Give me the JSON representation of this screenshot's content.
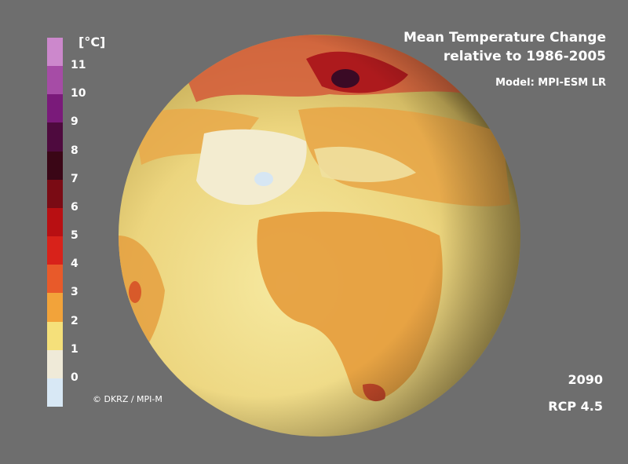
{
  "title": {
    "line1": "Mean Temperature Change",
    "line2": "relative to 1986-2005",
    "model": "Model: MPI-ESM LR"
  },
  "legend": {
    "unit": "[°C]",
    "ticks": [
      "11",
      "10",
      "9",
      "8",
      "7",
      "6",
      "5",
      "4",
      "3",
      "2",
      "1",
      "0"
    ],
    "colors": [
      "#cc88cc",
      "#a64ca6",
      "#7a1a7a",
      "#4e0a3e",
      "#3a0616",
      "#7a0b14",
      "#b80f12",
      "#d8221a",
      "#e85a2a",
      "#f2a33a",
      "#f5e07a",
      "#efead8",
      "#d8e8f5"
    ]
  },
  "credit": "© DKRZ / MPI-M",
  "year": "2090",
  "scenario": "RCP 4.5"
}
